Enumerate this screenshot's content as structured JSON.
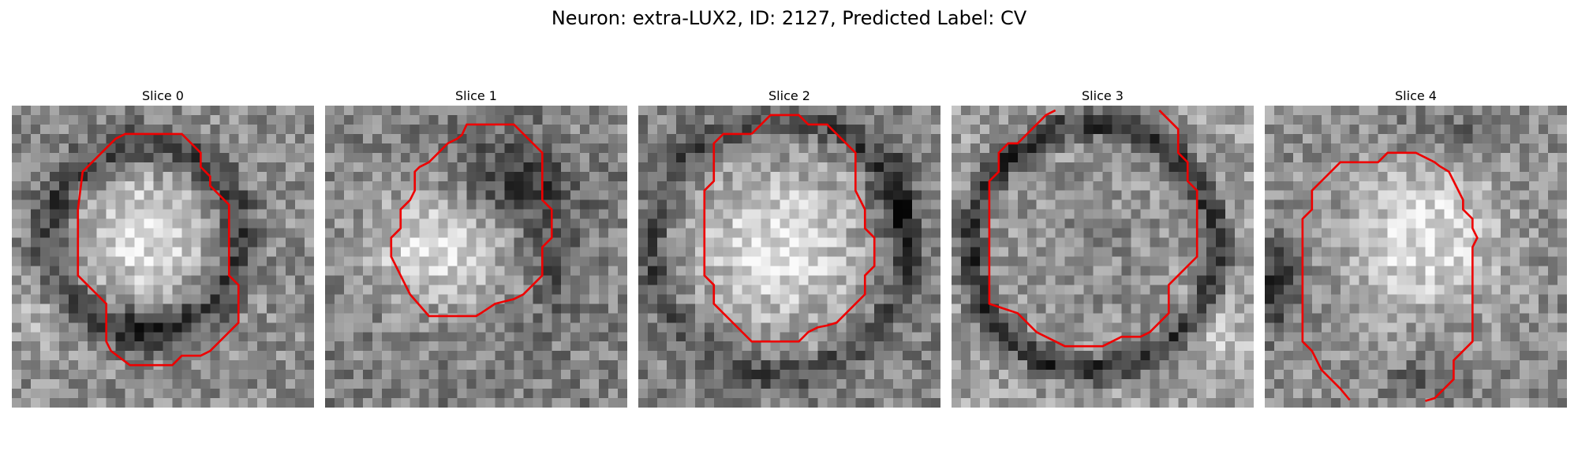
{
  "figure": {
    "title": "Neuron: extra-LUX2, ID: 2127, Predicted Label: CV"
  },
  "colors": {
    "background": "#ffffff",
    "contour": "#ee0000"
  },
  "panels": [
    {
      "title": "Slice 0"
    },
    {
      "title": "Slice 1"
    },
    {
      "title": "Slice 2"
    },
    {
      "title": "Slice 3"
    },
    {
      "title": "Slice 4"
    }
  ]
}
